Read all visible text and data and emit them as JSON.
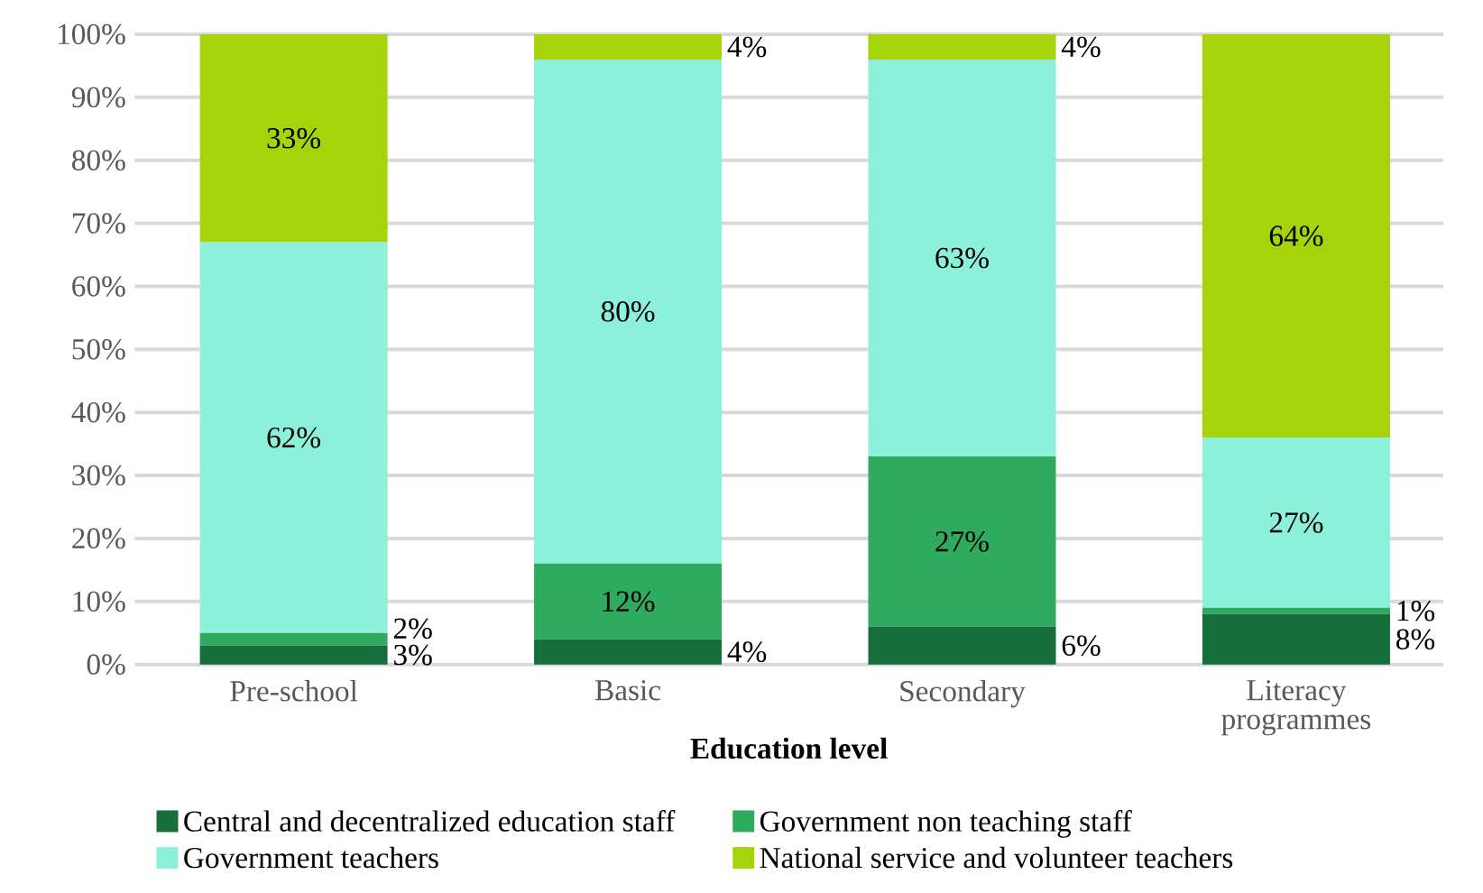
{
  "chart_data": {
    "type": "bar",
    "stacked": true,
    "xlabel": "Education level",
    "categories": [
      "Pre-school",
      "Basic",
      "Secondary",
      "Literacy programmes"
    ],
    "series": [
      {
        "name": "Central and decentralized education staff",
        "color": "#166e3b",
        "values": [
          3,
          4,
          6,
          8
        ],
        "value_labels": [
          "3%",
          "4%",
          "6%",
          "8%"
        ]
      },
      {
        "name": "Government non teaching staff",
        "color": "#2eab5f",
        "values": [
          2,
          12,
          27,
          1
        ],
        "value_labels": [
          "2%",
          "12%",
          "27%",
          "1%"
        ]
      },
      {
        "name": "Government teachers",
        "color": "#8cf0da",
        "values": [
          62,
          80,
          63,
          27
        ],
        "value_labels": [
          "62%",
          "80%",
          "63%",
          "27%"
        ]
      },
      {
        "name": "National service and volunteer teachers",
        "color": "#a6d40b",
        "values": [
          33,
          4,
          4,
          64
        ],
        "value_labels": [
          "33%",
          "4%",
          "4%",
          "64%"
        ]
      }
    ],
    "ylim": [
      0,
      100
    ],
    "yticks": [
      {
        "value": 0,
        "label": "0%"
      },
      {
        "value": 10,
        "label": "10%"
      },
      {
        "value": 20,
        "label": "20%"
      },
      {
        "value": 30,
        "label": "30%"
      },
      {
        "value": 40,
        "label": "40%"
      },
      {
        "value": 50,
        "label": "50%"
      },
      {
        "value": 60,
        "label": "60%"
      },
      {
        "value": 70,
        "label": "70%"
      },
      {
        "value": 80,
        "label": "80%"
      },
      {
        "value": 90,
        "label": "90%"
      },
      {
        "value": 100,
        "label": "100%"
      }
    ],
    "grid": "y",
    "legend": "bottom"
  }
}
